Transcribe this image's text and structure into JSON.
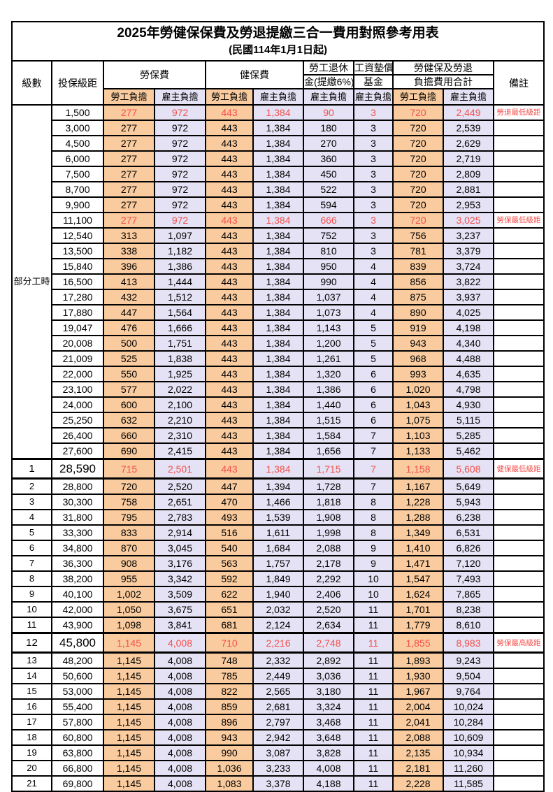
{
  "title": "2025年勞健保保費及勞退提繳三合一費用對照參考用表",
  "subtitle": "(民國114年1月1日起)",
  "colors": {
    "employee_col_bg": "#f9cb9e",
    "employer_col_bg": "#e4e2f4",
    "highlight_text": "#f4504d",
    "border": "#000000"
  },
  "header": {
    "level": "級數",
    "bracket": "投保級距",
    "labor_ins": "勞保費",
    "health_ins": "健保費",
    "pension_line1": "勞工退休",
    "pension_line2": "金(提繳6%)",
    "wage_fund_line1": "工資墊償",
    "wage_fund_line2": "基金",
    "total_line1": "勞健保及勞退",
    "total_line2": "負擔費用合計",
    "remark": "備註",
    "employee": "勞工負擔",
    "employer": "雇主負擔"
  },
  "group_label": "部分工時",
  "group_rowspan": 23,
  "rows": [
    {
      "level": null,
      "bracket": "1,500",
      "vals": [
        "277",
        "972",
        "443",
        "1,384",
        "90",
        "3",
        "720",
        "2,449"
      ],
      "remark": "勞退最低級距",
      "red": true,
      "em": false
    },
    {
      "level": null,
      "bracket": "3,000",
      "vals": [
        "277",
        "972",
        "443",
        "1,384",
        "180",
        "3",
        "720",
        "2,539"
      ],
      "remark": "",
      "red": false,
      "em": false
    },
    {
      "level": null,
      "bracket": "4,500",
      "vals": [
        "277",
        "972",
        "443",
        "1,384",
        "270",
        "3",
        "720",
        "2,629"
      ],
      "remark": "",
      "red": false,
      "em": false
    },
    {
      "level": null,
      "bracket": "6,000",
      "vals": [
        "277",
        "972",
        "443",
        "1,384",
        "360",
        "3",
        "720",
        "2,719"
      ],
      "remark": "",
      "red": false,
      "em": false
    },
    {
      "level": null,
      "bracket": "7,500",
      "vals": [
        "277",
        "972",
        "443",
        "1,384",
        "450",
        "3",
        "720",
        "2,809"
      ],
      "remark": "",
      "red": false,
      "em": false
    },
    {
      "level": null,
      "bracket": "8,700",
      "vals": [
        "277",
        "972",
        "443",
        "1,384",
        "522",
        "3",
        "720",
        "2,881"
      ],
      "remark": "",
      "red": false,
      "em": false
    },
    {
      "level": null,
      "bracket": "9,900",
      "vals": [
        "277",
        "972",
        "443",
        "1,384",
        "594",
        "3",
        "720",
        "2,953"
      ],
      "remark": "",
      "red": false,
      "em": false
    },
    {
      "level": null,
      "bracket": "11,100",
      "vals": [
        "277",
        "972",
        "443",
        "1,384",
        "666",
        "3",
        "720",
        "3,025"
      ],
      "remark": "勞保最低級距",
      "red": true,
      "em": false
    },
    {
      "level": null,
      "bracket": "12,540",
      "vals": [
        "313",
        "1,097",
        "443",
        "1,384",
        "752",
        "3",
        "756",
        "3,237"
      ],
      "remark": "",
      "red": false,
      "em": false
    },
    {
      "level": null,
      "bracket": "13,500",
      "vals": [
        "338",
        "1,182",
        "443",
        "1,384",
        "810",
        "3",
        "781",
        "3,379"
      ],
      "remark": "",
      "red": false,
      "em": false
    },
    {
      "level": null,
      "bracket": "15,840",
      "vals": [
        "396",
        "1,386",
        "443",
        "1,384",
        "950",
        "4",
        "839",
        "3,724"
      ],
      "remark": "",
      "red": false,
      "em": false
    },
    {
      "level": null,
      "bracket": "16,500",
      "vals": [
        "413",
        "1,444",
        "443",
        "1,384",
        "990",
        "4",
        "856",
        "3,822"
      ],
      "remark": "",
      "red": false,
      "em": false
    },
    {
      "level": null,
      "bracket": "17,280",
      "vals": [
        "432",
        "1,512",
        "443",
        "1,384",
        "1,037",
        "4",
        "875",
        "3,937"
      ],
      "remark": "",
      "red": false,
      "em": false
    },
    {
      "level": null,
      "bracket": "17,880",
      "vals": [
        "447",
        "1,564",
        "443",
        "1,384",
        "1,073",
        "4",
        "890",
        "4,025"
      ],
      "remark": "",
      "red": false,
      "em": false
    },
    {
      "level": null,
      "bracket": "19,047",
      "vals": [
        "476",
        "1,666",
        "443",
        "1,384",
        "1,143",
        "5",
        "919",
        "4,198"
      ],
      "remark": "",
      "red": false,
      "em": false
    },
    {
      "level": null,
      "bracket": "20,008",
      "vals": [
        "500",
        "1,751",
        "443",
        "1,384",
        "1,200",
        "5",
        "943",
        "4,340"
      ],
      "remark": "",
      "red": false,
      "em": false
    },
    {
      "level": null,
      "bracket": "21,009",
      "vals": [
        "525",
        "1,838",
        "443",
        "1,384",
        "1,261",
        "5",
        "968",
        "4,488"
      ],
      "remark": "",
      "red": false,
      "em": false
    },
    {
      "level": null,
      "bracket": "22,000",
      "vals": [
        "550",
        "1,925",
        "443",
        "1,384",
        "1,320",
        "6",
        "993",
        "4,635"
      ],
      "remark": "",
      "red": false,
      "em": false
    },
    {
      "level": null,
      "bracket": "23,100",
      "vals": [
        "577",
        "2,022",
        "443",
        "1,384",
        "1,386",
        "6",
        "1,020",
        "4,798"
      ],
      "remark": "",
      "red": false,
      "em": false
    },
    {
      "level": null,
      "bracket": "24,000",
      "vals": [
        "600",
        "2,100",
        "443",
        "1,384",
        "1,440",
        "6",
        "1,043",
        "4,930"
      ],
      "remark": "",
      "red": false,
      "em": false
    },
    {
      "level": null,
      "bracket": "25,250",
      "vals": [
        "632",
        "2,210",
        "443",
        "1,384",
        "1,515",
        "6",
        "1,075",
        "5,115"
      ],
      "remark": "",
      "red": false,
      "em": false
    },
    {
      "level": null,
      "bracket": "26,400",
      "vals": [
        "660",
        "2,310",
        "443",
        "1,384",
        "1,584",
        "7",
        "1,103",
        "5,285"
      ],
      "remark": "",
      "red": false,
      "em": false
    },
    {
      "level": null,
      "bracket": "27,600",
      "vals": [
        "690",
        "2,415",
        "443",
        "1,384",
        "1,656",
        "7",
        "1,133",
        "5,462"
      ],
      "remark": "",
      "red": false,
      "em": false
    },
    {
      "level": "1",
      "bracket": "28,590",
      "vals": [
        "715",
        "2,501",
        "443",
        "1,384",
        "1,715",
        "7",
        "1,158",
        "5,608"
      ],
      "remark": "健保最低級距",
      "red": true,
      "em": true
    },
    {
      "level": "2",
      "bracket": "28,800",
      "vals": [
        "720",
        "2,520",
        "447",
        "1,394",
        "1,728",
        "7",
        "1,167",
        "5,649"
      ],
      "remark": "",
      "red": false,
      "em": false
    },
    {
      "level": "3",
      "bracket": "30,300",
      "vals": [
        "758",
        "2,651",
        "470",
        "1,466",
        "1,818",
        "8",
        "1,228",
        "5,943"
      ],
      "remark": "",
      "red": false,
      "em": false
    },
    {
      "level": "4",
      "bracket": "31,800",
      "vals": [
        "795",
        "2,783",
        "493",
        "1,539",
        "1,908",
        "8",
        "1,288",
        "6,238"
      ],
      "remark": "",
      "red": false,
      "em": false
    },
    {
      "level": "5",
      "bracket": "33,300",
      "vals": [
        "833",
        "2,914",
        "516",
        "1,611",
        "1,998",
        "8",
        "1,349",
        "6,531"
      ],
      "remark": "",
      "red": false,
      "em": false
    },
    {
      "level": "6",
      "bracket": "34,800",
      "vals": [
        "870",
        "3,045",
        "540",
        "1,684",
        "2,088",
        "9",
        "1,410",
        "6,826"
      ],
      "remark": "",
      "red": false,
      "em": false
    },
    {
      "level": "7",
      "bracket": "36,300",
      "vals": [
        "908",
        "3,176",
        "563",
        "1,757",
        "2,178",
        "9",
        "1,471",
        "7,120"
      ],
      "remark": "",
      "red": false,
      "em": false
    },
    {
      "level": "8",
      "bracket": "38,200",
      "vals": [
        "955",
        "3,342",
        "592",
        "1,849",
        "2,292",
        "10",
        "1,547",
        "7,493"
      ],
      "remark": "",
      "red": false,
      "em": false
    },
    {
      "level": "9",
      "bracket": "40,100",
      "vals": [
        "1,002",
        "3,509",
        "622",
        "1,940",
        "2,406",
        "10",
        "1,624",
        "7,865"
      ],
      "remark": "",
      "red": false,
      "em": false
    },
    {
      "level": "10",
      "bracket": "42,000",
      "vals": [
        "1,050",
        "3,675",
        "651",
        "2,032",
        "2,520",
        "11",
        "1,701",
        "8,238"
      ],
      "remark": "",
      "red": false,
      "em": false
    },
    {
      "level": "11",
      "bracket": "43,900",
      "vals": [
        "1,098",
        "3,841",
        "681",
        "2,124",
        "2,634",
        "11",
        "1,779",
        "8,610"
      ],
      "remark": "",
      "red": false,
      "em": false
    },
    {
      "level": "12",
      "bracket": "45,800",
      "vals": [
        "1,145",
        "4,008",
        "710",
        "2,216",
        "2,748",
        "11",
        "1,855",
        "8,983"
      ],
      "remark": "勞保最高級距",
      "red": true,
      "em": true
    },
    {
      "level": "13",
      "bracket": "48,200",
      "vals": [
        "1,145",
        "4,008",
        "748",
        "2,332",
        "2,892",
        "11",
        "1,893",
        "9,243"
      ],
      "remark": "",
      "red": false,
      "em": false
    },
    {
      "level": "14",
      "bracket": "50,600",
      "vals": [
        "1,145",
        "4,008",
        "785",
        "2,449",
        "3,036",
        "11",
        "1,930",
        "9,504"
      ],
      "remark": "",
      "red": false,
      "em": false
    },
    {
      "level": "15",
      "bracket": "53,000",
      "vals": [
        "1,145",
        "4,008",
        "822",
        "2,565",
        "3,180",
        "11",
        "1,967",
        "9,764"
      ],
      "remark": "",
      "red": false,
      "em": false
    },
    {
      "level": "16",
      "bracket": "55,400",
      "vals": [
        "1,145",
        "4,008",
        "859",
        "2,681",
        "3,324",
        "11",
        "2,004",
        "10,024"
      ],
      "remark": "",
      "red": false,
      "em": false
    },
    {
      "level": "17",
      "bracket": "57,800",
      "vals": [
        "1,145",
        "4,008",
        "896",
        "2,797",
        "3,468",
        "11",
        "2,041",
        "10,284"
      ],
      "remark": "",
      "red": false,
      "em": false
    },
    {
      "level": "18",
      "bracket": "60,800",
      "vals": [
        "1,145",
        "4,008",
        "943",
        "2,942",
        "3,648",
        "11",
        "2,088",
        "10,609"
      ],
      "remark": "",
      "red": false,
      "em": false
    },
    {
      "level": "19",
      "bracket": "63,800",
      "vals": [
        "1,145",
        "4,008",
        "990",
        "3,087",
        "3,828",
        "11",
        "2,135",
        "10,934"
      ],
      "remark": "",
      "red": false,
      "em": false
    },
    {
      "level": "20",
      "bracket": "66,800",
      "vals": [
        "1,145",
        "4,008",
        "1,036",
        "3,233",
        "4,008",
        "11",
        "2,181",
        "11,260"
      ],
      "remark": "",
      "red": false,
      "em": false
    },
    {
      "level": "21",
      "bracket": "69,800",
      "vals": [
        "1,145",
        "4,008",
        "1,083",
        "3,378",
        "4,188",
        "11",
        "2,228",
        "11,585"
      ],
      "remark": "",
      "red": false,
      "em": false
    }
  ]
}
